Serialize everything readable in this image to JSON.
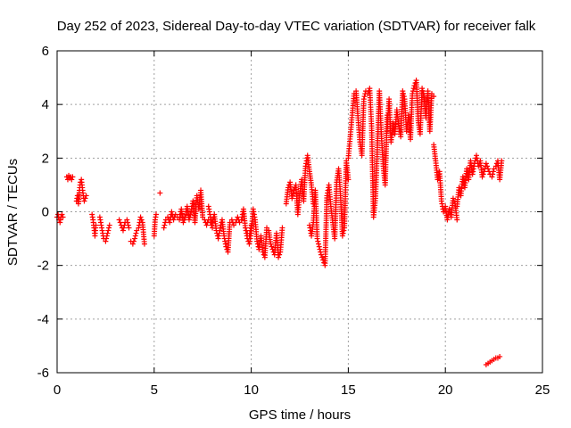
{
  "chart_data": {
    "type": "scatter",
    "title": "Day 252 of 2023, Sidereal Day-to-day VTEC variation (SDTVAR) for receiver falk",
    "xlabel": "GPS time / hours",
    "ylabel": "SDTVAR / TECUs",
    "xlim": [
      0,
      25
    ],
    "ylim": [
      -6,
      6
    ],
    "xticks": [
      0,
      5,
      10,
      15,
      20,
      25
    ],
    "yticks": [
      -6,
      -4,
      -2,
      0,
      2,
      4,
      6
    ],
    "xtick_labels": [
      "0",
      "5",
      "10",
      "15",
      "20",
      "25"
    ],
    "ytick_labels": [
      "-6",
      "-4",
      "-2",
      "0",
      "2",
      "4",
      "6"
    ],
    "grid": true,
    "marker": "+",
    "series": [
      {
        "name": "SDTVAR",
        "color": "#ff0000",
        "segments": [
          {
            "x": [
              0.0,
              0.05,
              0.1,
              0.15,
              0.2,
              0.25,
              0.3
            ],
            "y": [
              -0.2,
              -0.1,
              -0.3,
              -0.4,
              -0.2,
              -0.1,
              -0.2
            ]
          },
          {
            "x": [
              0.5,
              0.55,
              0.6,
              0.65,
              0.7,
              0.75,
              0.8
            ],
            "y": [
              1.3,
              1.2,
              1.35,
              1.25,
              1.3,
              1.2,
              1.3
            ]
          },
          {
            "x": [
              1.0,
              1.05,
              1.1,
              1.15,
              1.2,
              1.25,
              1.3,
              1.35,
              1.4,
              1.45,
              1.5
            ],
            "y": [
              0.4,
              0.6,
              0.3,
              0.8,
              1.1,
              1.2,
              0.9,
              0.6,
              0.4,
              0.5,
              0.6
            ]
          },
          {
            "x": [
              1.8,
              1.85,
              1.9,
              1.95,
              2.0
            ],
            "y": [
              -0.1,
              -0.3,
              -0.6,
              -0.9,
              -0.5
            ]
          },
          {
            "x": [
              2.2,
              2.3,
              2.4,
              2.5,
              2.6,
              2.7
            ],
            "y": [
              -0.2,
              -0.6,
              -1.0,
              -1.1,
              -0.8,
              -0.5
            ]
          },
          {
            "x": [
              3.2,
              3.3,
              3.4,
              3.5,
              3.6,
              3.7
            ],
            "y": [
              -0.3,
              -0.5,
              -0.7,
              -0.4,
              -0.3,
              -0.6
            ]
          },
          {
            "x": [
              3.8,
              3.9,
              4.0,
              4.1,
              4.2,
              4.3,
              4.4,
              4.5
            ],
            "y": [
              -1.1,
              -1.2,
              -1.0,
              -0.7,
              -0.6,
              -0.2,
              -0.4,
              -1.2
            ]
          },
          {
            "x": [
              5.0,
              5.05,
              5.1
            ],
            "y": [
              -0.9,
              -0.3,
              -0.1
            ]
          },
          {
            "x": [
              5.3
            ],
            "y": [
              0.7
            ]
          },
          {
            "x": [
              5.5,
              5.6,
              5.7,
              5.8,
              5.9,
              6.0,
              6.1,
              6.2,
              6.3,
              6.4,
              6.5,
              6.6,
              6.7,
              6.8,
              6.9,
              7.0,
              7.1,
              7.2,
              7.3,
              7.4,
              7.5,
              7.6,
              7.7,
              7.8,
              7.9,
              8.0
            ],
            "y": [
              -0.6,
              -0.3,
              -0.2,
              -0.4,
              0.0,
              -0.3,
              -0.1,
              -0.2,
              -0.3,
              0.1,
              -0.4,
              -0.2,
              0.2,
              -0.3,
              0.0,
              0.4,
              -0.4,
              0.6,
              0.1,
              0.8,
              -0.2,
              -0.3,
              -0.5,
              -0.3,
              -0.4,
              -0.6
            ]
          },
          {
            "x": [
              7.8,
              7.9,
              8.0,
              8.1,
              8.2,
              8.3,
              8.4,
              8.5,
              8.6,
              8.7,
              8.8,
              8.9,
              9.0,
              9.1,
              9.2,
              9.3,
              9.4,
              9.5,
              9.6,
              9.7,
              9.8,
              9.9,
              10.0
            ],
            "y": [
              0.2,
              -0.2,
              -0.4,
              -0.1,
              -0.7,
              -1.0,
              -0.6,
              -0.3,
              -0.9,
              -1.3,
              -1.5,
              -0.4,
              -0.3,
              -0.5,
              -0.4,
              -0.2,
              -0.4,
              -0.3,
              0.1,
              -0.6,
              -0.8,
              -0.9,
              -0.5
            ]
          },
          {
            "x": [
              9.7,
              9.8,
              9.9,
              10.0,
              10.1,
              10.2,
              10.3,
              10.4,
              10.5,
              10.6,
              10.7,
              10.8,
              10.9,
              11.0,
              11.1,
              11.2,
              11.3,
              11.4,
              11.5,
              11.6
            ],
            "y": [
              -0.6,
              -1.0,
              -1.2,
              -0.8,
              0.1,
              -0.3,
              -1.1,
              -1.4,
              -0.9,
              -1.5,
              -1.7,
              -0.6,
              -0.7,
              -1.2,
              -1.4,
              -1.6,
              -0.8,
              -1.7,
              -1.5,
              -0.6
            ]
          },
          {
            "x": [
              11.8,
              11.9,
              12.0,
              12.1,
              12.2,
              12.3,
              12.4,
              12.5,
              12.6,
              12.7,
              12.8,
              12.9,
              13.0,
              13.1,
              13.2
            ],
            "y": [
              0.3,
              0.9,
              1.1,
              0.5,
              0.8,
              1.0,
              -0.1,
              0.7,
              1.2,
              0.4,
              1.7,
              2.1,
              1.5,
              1.0,
              0.3
            ]
          },
          {
            "x": [
              13.0,
              13.1,
              13.2,
              13.3,
              13.4,
              13.5,
              13.6,
              13.7,
              13.8,
              13.9,
              14.0,
              14.1,
              14.2,
              14.3,
              14.4,
              14.5,
              14.6,
              14.7,
              14.8,
              14.9,
              15.0
            ],
            "y": [
              -0.5,
              -0.9,
              -0.4,
              0.8,
              -1.0,
              -1.3,
              -1.6,
              -1.8,
              -2.0,
              0.6,
              1.0,
              0.2,
              -0.4,
              -1.0,
              1.1,
              1.6,
              0.6,
              -0.9,
              -0.6,
              1.9,
              1.2
            ]
          },
          {
            "x": [
              15.0,
              15.1,
              15.2,
              15.3,
              15.4,
              15.5,
              15.6,
              15.7,
              15.8,
              15.9,
              16.0,
              16.1,
              16.2,
              16.3,
              16.4,
              16.5,
              16.6,
              16.7,
              16.8,
              16.9,
              17.0
            ],
            "y": [
              2.0,
              2.8,
              3.6,
              4.4,
              4.5,
              3.5,
              2.6,
              2.1,
              4.2,
              4.5,
              4.4,
              4.6,
              3.2,
              -0.2,
              0.5,
              2.4,
              4.5,
              2.9,
              1.7,
              1.0,
              3.6
            ]
          },
          {
            "x": [
              17.0,
              17.1,
              17.2,
              17.3,
              17.4,
              17.5,
              17.6,
              17.7,
              17.8,
              17.9,
              18.0,
              18.1,
              18.2,
              18.3,
              18.4,
              18.5,
              18.6,
              18.7,
              18.8,
              18.9,
              19.0,
              19.1,
              19.2,
              19.3,
              19.4
            ],
            "y": [
              3.0,
              4.2,
              2.6,
              3.3,
              2.9,
              3.8,
              3.2,
              2.8,
              4.5,
              4.2,
              3.0,
              3.6,
              2.7,
              4.4,
              4.7,
              4.9,
              3.4,
              2.9,
              4.6,
              4.3,
              3.5,
              4.5,
              3.0,
              4.4,
              4.3
            ]
          },
          {
            "x": [
              19.4,
              19.5,
              19.6,
              19.7,
              19.8,
              19.9,
              20.0,
              20.1,
              20.2,
              20.3,
              20.4,
              20.5,
              20.6
            ],
            "y": [
              2.5,
              1.9,
              1.2,
              1.5,
              0.4,
              0.0,
              0.2,
              -0.3,
              0.1,
              -0.2,
              0.5,
              0.3,
              -0.3
            ]
          },
          {
            "x": [
              20.6,
              20.7,
              20.8,
              20.9,
              21.0,
              21.1,
              21.2,
              21.3,
              21.4,
              21.5,
              21.6,
              21.7,
              21.8,
              21.9,
              22.0,
              22.1,
              22.2,
              22.3,
              22.4,
              22.5,
              22.6,
              22.7,
              22.8,
              22.9
            ],
            "y": [
              0.2,
              0.9,
              0.6,
              1.3,
              0.9,
              1.6,
              1.2,
              1.9,
              1.4,
              1.8,
              2.1,
              1.7,
              1.9,
              1.3,
              1.5,
              1.8,
              1.6,
              1.4,
              1.3,
              1.6,
              1.7,
              1.9,
              1.2,
              1.9
            ]
          },
          {
            "x": [
              22.1,
              22.2,
              22.3,
              22.4,
              22.5,
              22.6,
              22.7,
              22.8
            ],
            "y": [
              -5.7,
              -5.65,
              -5.6,
              -5.55,
              -5.5,
              -5.45,
              -5.45,
              -5.4
            ]
          }
        ]
      }
    ]
  }
}
